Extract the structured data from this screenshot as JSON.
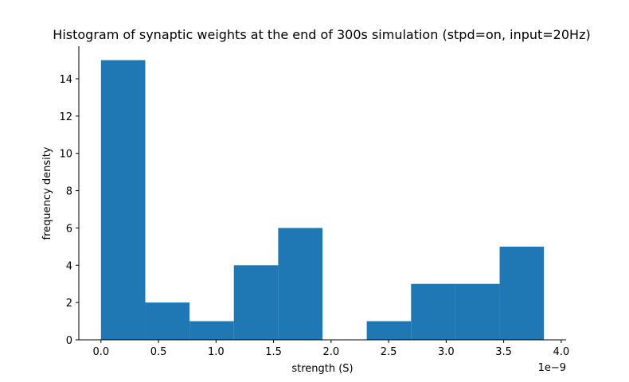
{
  "chart_data": {
    "type": "bar",
    "title": "Histogram of synaptic weights at the end of 300s simulation (stpd=on, input=20Hz)",
    "xlabel": "strength (S)",
    "ylabel": "frequency density",
    "x_offset_text": "1e−9",
    "xlim": [
      -0.1925,
      4.0425
    ],
    "ylim": [
      0,
      15.75
    ],
    "x_ticks": [
      0.0,
      0.5,
      1.0,
      1.5,
      2.0,
      2.5,
      3.0,
      3.5,
      4.0
    ],
    "x_tick_labels": [
      "0.0",
      "0.5",
      "1.0",
      "1.5",
      "2.0",
      "2.5",
      "3.0",
      "3.5",
      "4.0"
    ],
    "y_ticks": [
      0,
      2,
      4,
      6,
      8,
      10,
      12,
      14
    ],
    "y_tick_labels": [
      "0",
      "2",
      "4",
      "6",
      "8",
      "10",
      "12",
      "14"
    ],
    "bin_edges": [
      0.0,
      0.385,
      0.77,
      1.155,
      1.54,
      1.925,
      2.31,
      2.695,
      3.08,
      3.465,
      3.85
    ],
    "values": [
      15,
      2,
      1,
      4,
      6,
      0,
      1,
      3,
      3,
      5
    ],
    "bar_color": "#1f77b4",
    "grid": false
  }
}
